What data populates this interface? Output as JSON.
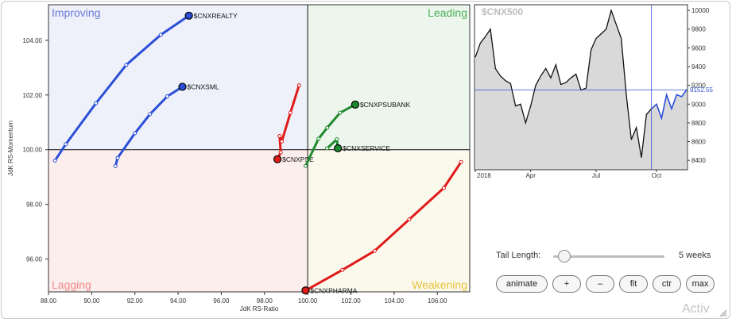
{
  "chart_data": [
    {
      "type": "scatter",
      "subtype": "relative-rotation-graph",
      "xlabel": "JdK RS-Ratio",
      "ylabel": "JdK RS-Momentum",
      "xlim": [
        88,
        107.5
      ],
      "ylim": [
        94.8,
        105.3
      ],
      "xticks": [
        "88.00",
        "90.00",
        "92.00",
        "94.00",
        "96.00",
        "98.00",
        "100.00",
        "102.00",
        "104.00",
        "106.00"
      ],
      "yticks": [
        "96.00",
        "98.00",
        "100.00",
        "102.00",
        "104.00"
      ],
      "center": [
        100,
        100
      ],
      "grid": false,
      "quadrants": [
        {
          "label": "Improving",
          "position": "top-left",
          "color": "#6b7bd8",
          "fill": "#eef0fa"
        },
        {
          "label": "Leading",
          "position": "top-right",
          "color": "#4caf5a",
          "fill": "#ecf6ec"
        },
        {
          "label": "Lagging",
          "position": "bottom-left",
          "color": "#f08a8a",
          "fill": "#fdeeee"
        },
        {
          "label": "Weakening",
          "position": "bottom-right",
          "color": "#e8c13c",
          "fill": "#fbf9ec"
        }
      ],
      "series": [
        {
          "name": "$CNXREALTY",
          "color": "#2b4fd6",
          "points": [
            [
              88.3,
              99.6
            ],
            [
              88.8,
              100.2
            ],
            [
              90.2,
              101.7
            ],
            [
              91.6,
              103.1
            ],
            [
              93.2,
              104.2
            ],
            [
              94.5,
              104.9
            ]
          ]
        },
        {
          "name": "$CNXSML",
          "color": "#2b4fd6",
          "points": [
            [
              91.1,
              99.4
            ],
            [
              91.2,
              99.7
            ],
            [
              92.0,
              100.6
            ],
            [
              92.7,
              101.3
            ],
            [
              93.5,
              101.95
            ],
            [
              94.2,
              102.3
            ]
          ]
        },
        {
          "name": "$CNXPSE",
          "color": "#e01b1b",
          "points": [
            [
              99.6,
              102.35
            ],
            [
              99.2,
              101.35
            ],
            [
              98.8,
              100.3
            ],
            [
              98.7,
              100.5
            ],
            [
              98.75,
              99.9
            ],
            [
              98.6,
              99.65
            ]
          ]
        },
        {
          "name": "$CNXPSUBANK",
          "color": "#1f8a2e",
          "points": [
            [
              99.9,
              99.4
            ],
            [
              100.5,
              100.4
            ],
            [
              100.9,
              100.8
            ],
            [
              101.5,
              101.35
            ],
            [
              102.2,
              101.65
            ]
          ]
        },
        {
          "name": "$CNXSERVICE",
          "color": "#1f8a2e",
          "points": [
            [
              100.9,
              100.05
            ],
            [
              101.35,
              100.38
            ],
            [
              101.4,
              100.05
            ]
          ]
        },
        {
          "name": "$CNXPHARMA",
          "color": "#e01b1b",
          "points": [
            [
              107.1,
              99.55
            ],
            [
              106.3,
              98.6
            ],
            [
              104.7,
              97.45
            ],
            [
              103.1,
              96.3
            ],
            [
              101.6,
              95.6
            ],
            [
              99.9,
              94.85
            ]
          ]
        }
      ]
    },
    {
      "type": "area",
      "title": "$CNX500",
      "xticks": [
        "2018",
        "Apr",
        "Jul",
        "Oct"
      ],
      "yticks": [
        "8400",
        "8600",
        "8800",
        "9000",
        "9200",
        "9400",
        "9600",
        "9800",
        "10000"
      ],
      "ylim": [
        8300,
        10060
      ],
      "current_value": "9152.55",
      "current_value_raw": 9152.55,
      "line_color": "#111111",
      "highlight_color": "#2b4fd6",
      "values": [
        9500,
        9650,
        9720,
        9800,
        9380,
        9300,
        9250,
        9220,
        8980,
        9000,
        8800,
        8980,
        9200,
        9300,
        9380,
        9280,
        9420,
        9210,
        9230,
        9280,
        9320,
        9150,
        9170,
        9580,
        9700,
        9750,
        9800,
        10000,
        9850,
        9700,
        9100,
        8620,
        8750,
        8430,
        8890,
        8950,
        9000,
        8850,
        9100,
        8950,
        9100,
        9080,
        9152.55
      ]
    }
  ],
  "controls": {
    "tail_length_label": "Tail Length:",
    "tail_length_value": "5 weeks",
    "tail_length_fraction": 0.1,
    "buttons": [
      {
        "id": "animate",
        "label": "animate"
      },
      {
        "id": "zoom-in",
        "label": "+"
      },
      {
        "id": "zoom-out",
        "label": "–"
      },
      {
        "id": "fit",
        "label": "fit"
      },
      {
        "id": "ctr",
        "label": "ctr"
      },
      {
        "id": "max",
        "label": "max"
      }
    ]
  },
  "watermark": "Activ"
}
